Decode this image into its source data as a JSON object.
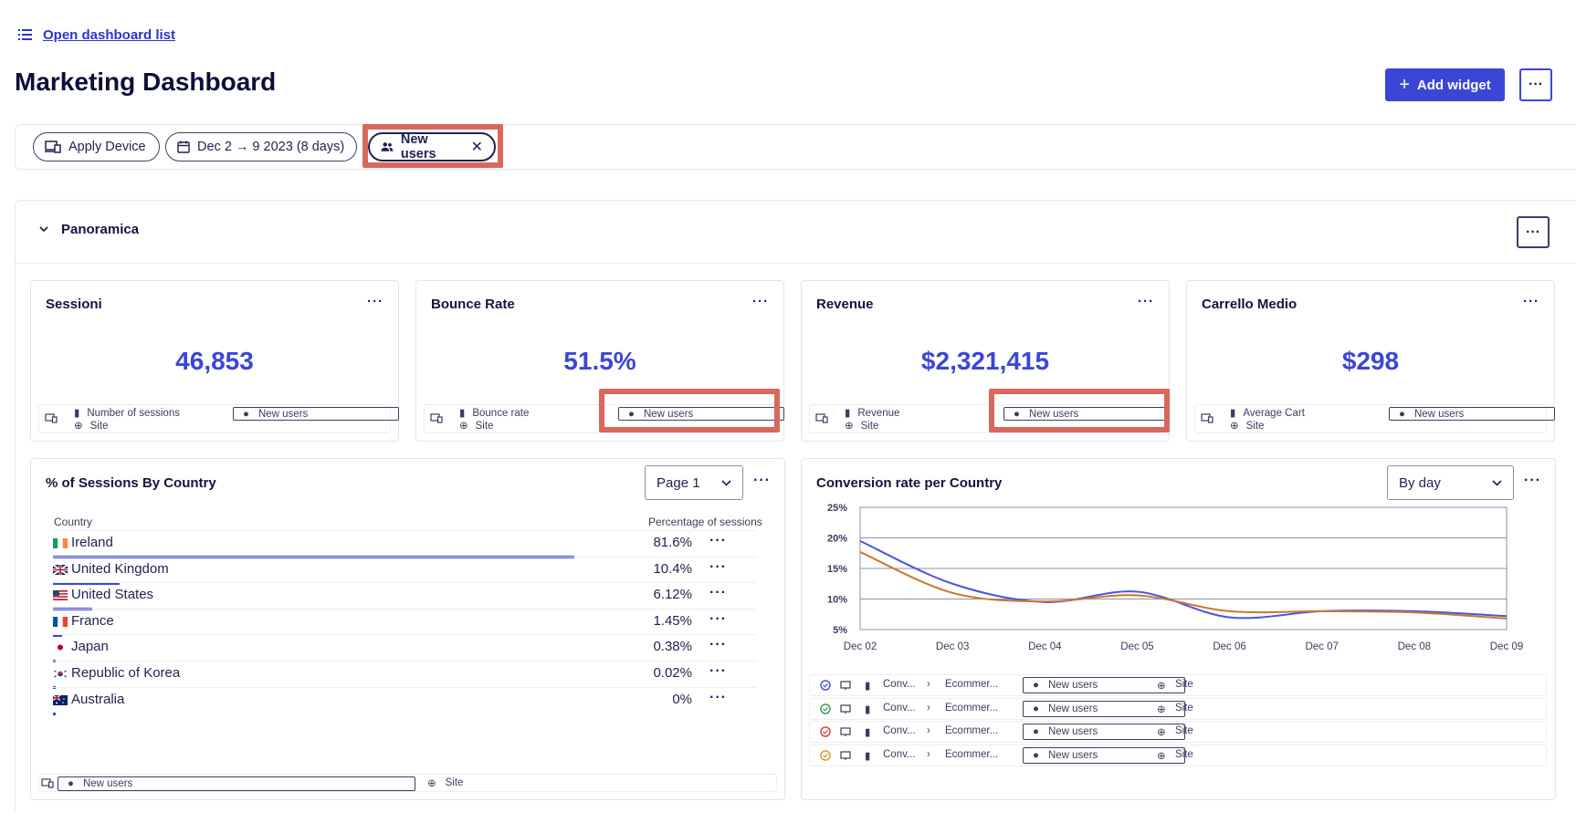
{
  "header": {
    "open_list": "Open dashboard list",
    "title": "Marketing Dashboard",
    "add_widget": "Add widget",
    "menu": "···"
  },
  "filters": {
    "device": "Apply Device",
    "date": "Dec 2 → 9 2023 (8 days)",
    "segment": "New users"
  },
  "section": {
    "name": "Panoramica",
    "menu": "···"
  },
  "kpis": [
    {
      "title": "Sessioni",
      "value": "46,853",
      "metric": "Number of sessions",
      "scope": "Site",
      "segment": "New users",
      "menu": "···"
    },
    {
      "title": "Bounce Rate",
      "value": "51.5%",
      "metric": "Bounce rate",
      "scope": "Site",
      "segment": "New users",
      "menu": "···"
    },
    {
      "title": "Revenue",
      "value": "$2,321,415",
      "metric": "Revenue",
      "scope": "Site",
      "segment": "New users",
      "menu": "···"
    },
    {
      "title": "Carrello Medio",
      "value": "$298",
      "metric": "Average Cart",
      "scope": "Site",
      "segment": "New users",
      "menu": "···"
    }
  ],
  "country_table": {
    "title": "% of Sessions By Country",
    "page_select": "Page 1",
    "menu": "···",
    "col_country": "Country",
    "col_pct": "Percentage of sessions",
    "rows": [
      {
        "country": "Ireland",
        "pct": "81.6%",
        "value": 81.6,
        "flag": "ie"
      },
      {
        "country": "United Kingdom",
        "pct": "10.4%",
        "value": 10.4,
        "flag": "gb"
      },
      {
        "country": "United States",
        "pct": "6.12%",
        "value": 6.12,
        "flag": "us"
      },
      {
        "country": "France",
        "pct": "1.45%",
        "value": 1.45,
        "flag": "fr"
      },
      {
        "country": "Japan",
        "pct": "0.38%",
        "value": 0.38,
        "flag": "jp"
      },
      {
        "country": "Republic of Korea",
        "pct": "0.02%",
        "value": 0.02,
        "flag": "kr"
      },
      {
        "country": "Australia",
        "pct": "0%",
        "value": 0,
        "flag": "au"
      }
    ],
    "footer_segment": "New users",
    "footer_scope": "Site"
  },
  "conversion": {
    "title": "Conversion rate per Country",
    "select": "By day",
    "menu": "···",
    "legend": [
      {
        "color": "#4a55e0",
        "device": "desktop",
        "metric": "Conv...",
        "target": "Ecommer...",
        "segment": "New users",
        "scope": "Site"
      },
      {
        "color": "#3f9d57",
        "device": "all-devices",
        "metric": "Conv...",
        "target": "Ecommer...",
        "segment": "New users",
        "scope": "Site"
      },
      {
        "color": "#d8463f",
        "device": "all-devices",
        "metric": "Conv...",
        "target": "Ecommer...",
        "segment": "New users",
        "scope": "Site"
      },
      {
        "color": "#d99a3a",
        "device": "all-devices",
        "metric": "Conv...",
        "target": "Ecommer...",
        "segment": "New users",
        "scope": "Site"
      }
    ]
  },
  "chart_data": {
    "type": "line",
    "title": "Conversion rate per Country",
    "xlabel": "",
    "ylabel": "",
    "x": [
      "Dec 02",
      "Dec 03",
      "Dec 04",
      "Dec 05",
      "Dec 06",
      "Dec 07",
      "Dec 08",
      "Dec 09"
    ],
    "y_ticks": [
      "25%",
      "20%",
      "15%",
      "10%",
      "5%"
    ],
    "ylim": [
      5,
      25
    ],
    "grid": true,
    "series": [
      {
        "color": "#4a55e0",
        "values": [
          19.5,
          12.5,
          9.5,
          11.2,
          7.0,
          8.0,
          8.0,
          7.2
        ]
      },
      {
        "color": "#c9782f",
        "values": [
          17.7,
          11.0,
          9.6,
          10.6,
          8.0,
          8.0,
          7.8,
          6.8
        ]
      }
    ]
  },
  "colors": {
    "accent": "#3b46d6",
    "highlight": "#d9675c"
  }
}
